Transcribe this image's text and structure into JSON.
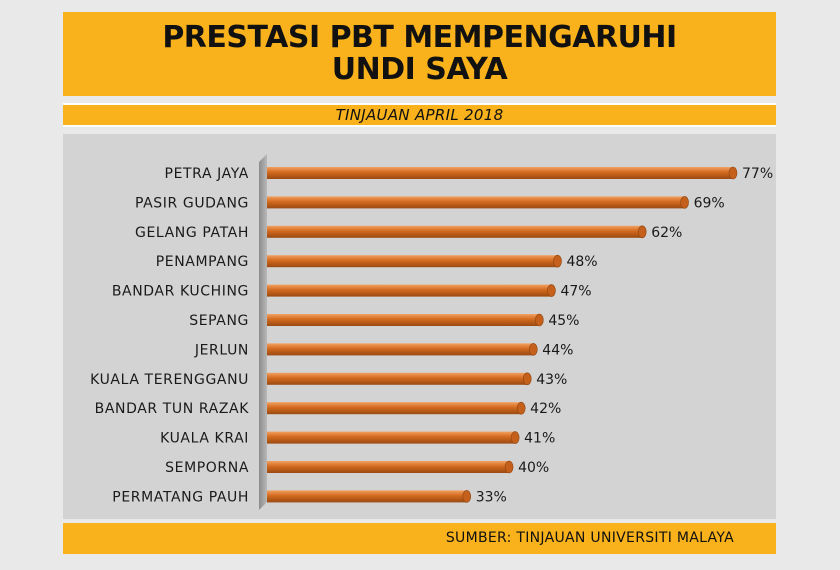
{
  "title_line1": "PRESTASI PBT MEMPENGARUHI",
  "title_line2": "UNDI SAYA",
  "subtitle": "TINJAUAN APRIL 2018",
  "source": "SUMBER: TINJAUAN UNIVERSITI MALAYA",
  "colors": {
    "bar": "#d2691e",
    "bar_highlight": "#f2a060",
    "bar_dark": "#9a4a12",
    "accent": "#f9b21c",
    "panel": "#d3d3d3"
  },
  "chart_data": {
    "type": "bar",
    "orientation": "horizontal",
    "categories": [
      "PETRA JAYA",
      "PASIR GUDANG",
      "GELANG PATAH",
      "PENAMPANG",
      "BANDAR KUCHING",
      "SEPANG",
      "JERLUN",
      "KUALA TERENGGANU",
      "BANDAR TUN RAZAK",
      "KUALA KRAI",
      "SEMPORNA",
      "PERMATANG PAUH"
    ],
    "values": [
      77,
      69,
      62,
      48,
      47,
      45,
      44,
      43,
      42,
      41,
      40,
      33
    ],
    "value_labels": [
      "77%",
      "69%",
      "62%",
      "48%",
      "47%",
      "45%",
      "44%",
      "43%",
      "42%",
      "41%",
      "40%",
      "33%"
    ],
    "unit": "%",
    "xlim": [
      0,
      77
    ],
    "grid": false,
    "legend": "none"
  }
}
